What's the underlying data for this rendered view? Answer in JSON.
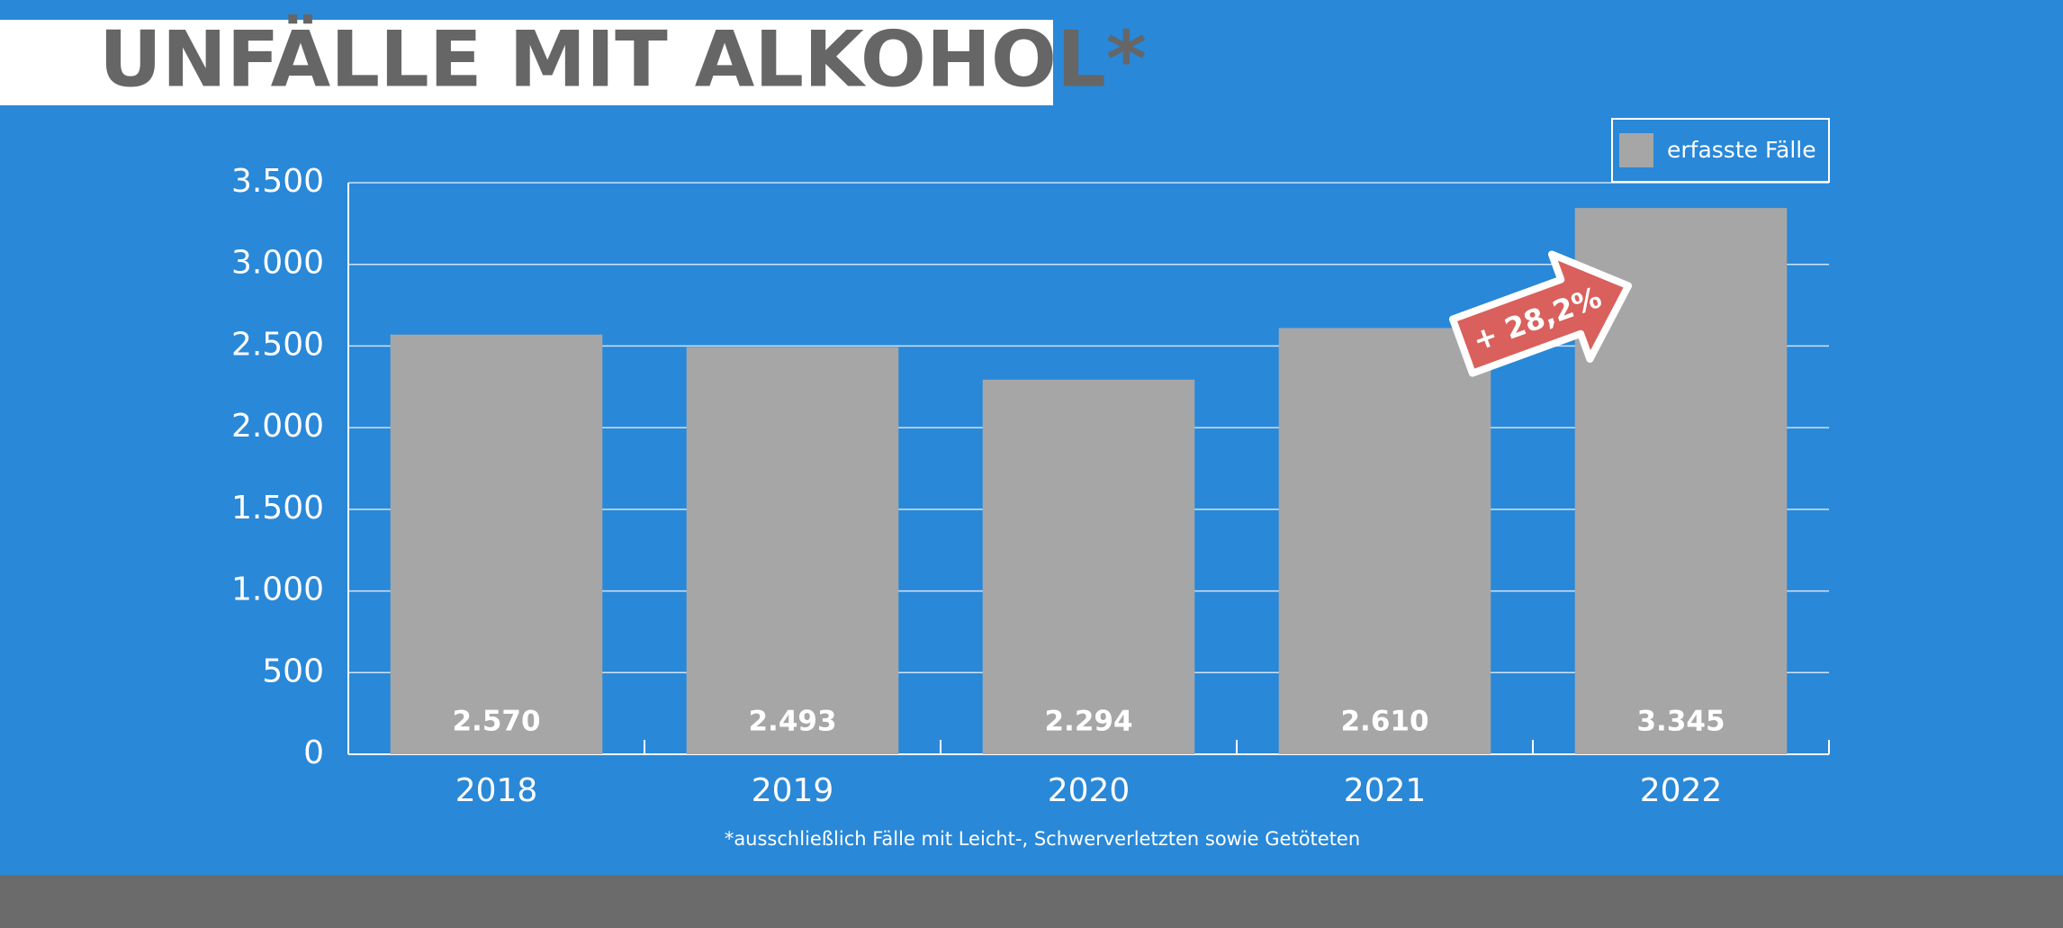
{
  "chart_data": {
    "type": "bar",
    "title": "UNFÄLLE MIT ALKOHOL*",
    "categories": [
      "2018",
      "2019",
      "2020",
      "2021",
      "2022"
    ],
    "series": [
      {
        "name": "erfasste Fälle",
        "color": "#a6a6a6",
        "values": [
          2570,
          2493,
          2294,
          2610,
          3345
        ],
        "value_labels": [
          "2.570",
          "2.493",
          "2.294",
          "2.610",
          "3.345"
        ]
      }
    ],
    "ylim": [
      0,
      3500
    ],
    "yticks": [
      0,
      500,
      {
        "value": 1000,
        "label": "1.000"
      },
      {
        "value": 1500,
        "label": "1.500"
      },
      {
        "value": 2000,
        "label": "2.000"
      },
      {
        "value": 2500,
        "label": "2.500"
      },
      {
        "value": 3000,
        "label": "3.000"
      },
      {
        "value": 3500,
        "label": "3.500"
      }
    ],
    "grid": true,
    "legend": "top-right",
    "annotation": "+ 28,2%",
    "footnote": "*ausschließlich Fälle mit Leicht-, Schwerverletzten sowie Getöteten"
  }
}
